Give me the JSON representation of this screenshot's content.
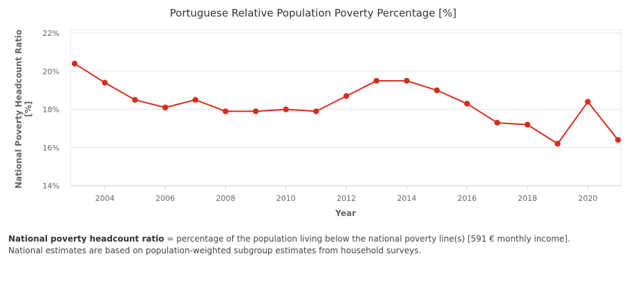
{
  "chart_data": {
    "type": "line",
    "title": "Portuguese Relative Population Poverty Percentage [%]",
    "xlabel": "Year",
    "ylabel": "National Poverty Headcount Ratio [%]",
    "ylabel_lines": [
      "National Poverty Headcount Ratio",
      "[%]"
    ],
    "xlim": [
      2003,
      2021
    ],
    "ylim": [
      14,
      22
    ],
    "x_ticks": [
      2004,
      2006,
      2008,
      2010,
      2012,
      2014,
      2016,
      2018,
      2020
    ],
    "y_ticks": [
      14,
      16,
      18,
      20,
      22
    ],
    "y_tick_labels": [
      "14%",
      "16%",
      "18%",
      "20%",
      "22%"
    ],
    "grid": true,
    "legend": "none",
    "series": [
      {
        "color": "#d62d1a",
        "x": [
          2003,
          2004,
          2005,
          2006,
          2007,
          2008,
          2009,
          2010,
          2011,
          2012,
          2013,
          2014,
          2015,
          2016,
          2017,
          2018,
          2019,
          2020,
          2021
        ],
        "y": [
          20.4,
          19.4,
          18.5,
          18.1,
          18.5,
          17.9,
          17.9,
          18.0,
          17.9,
          18.7,
          19.5,
          19.5,
          19.0,
          18.3,
          17.3,
          17.2,
          16.2,
          18.4,
          16.4
        ]
      }
    ]
  },
  "footnote": {
    "term": "National poverty headcount ratio",
    "definition": " = percentage of the population living below the national poverty line(s) [591 € monthly income].",
    "line2": "National estimates are based on population-weighted subgroup estimates from household surveys."
  }
}
